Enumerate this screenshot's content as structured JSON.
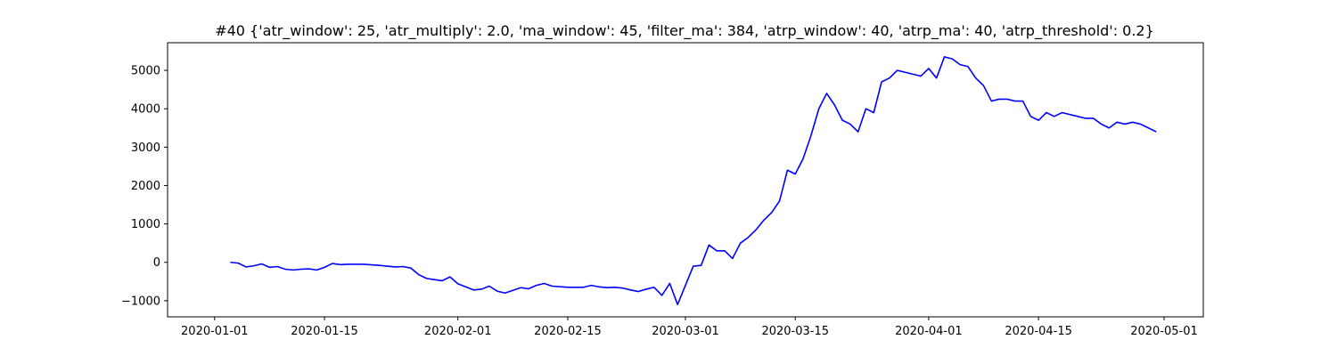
{
  "chart_data": {
    "type": "line",
    "title": "#40 {'atr_window': 25, 'atr_multiply': 2.0, 'ma_window': 45, 'filter_ma': 384, 'atrp_window': 40, 'atrp_ma': 40, 'atrp_threshold': 0.2}",
    "xlabel": "",
    "ylabel": "",
    "xlim": [
      "2019-12-26",
      "2020-05-06"
    ],
    "ylim": [
      -1420,
      5720
    ],
    "grid": false,
    "line_color": "#0000ff",
    "x_ticks": [
      "2020-01-01",
      "2020-01-15",
      "2020-02-01",
      "2020-02-15",
      "2020-03-01",
      "2020-03-15",
      "2020-04-01",
      "2020-04-15",
      "2020-05-01"
    ],
    "y_ticks": [
      -1000,
      0,
      1000,
      2000,
      3000,
      4000,
      5000
    ],
    "series": [
      {
        "x": [
          "2020-01-03",
          "2020-01-04",
          "2020-01-05",
          "2020-01-06",
          "2020-01-07",
          "2020-01-08",
          "2020-01-09",
          "2020-01-10",
          "2020-01-11",
          "2020-01-12",
          "2020-01-13",
          "2020-01-14",
          "2020-01-15",
          "2020-01-16",
          "2020-01-17",
          "2020-01-18",
          "2020-01-20",
          "2020-01-22",
          "2020-01-23",
          "2020-01-24",
          "2020-01-25",
          "2020-01-26",
          "2020-01-27",
          "2020-01-28",
          "2020-01-29",
          "2020-01-30",
          "2020-01-31",
          "2020-02-01",
          "2020-02-03",
          "2020-02-04",
          "2020-02-05",
          "2020-02-06",
          "2020-02-07",
          "2020-02-09",
          "2020-02-10",
          "2020-02-11",
          "2020-02-12",
          "2020-02-13",
          "2020-02-15",
          "2020-02-17",
          "2020-02-18",
          "2020-02-19",
          "2020-02-20",
          "2020-02-21",
          "2020-02-22",
          "2020-02-23",
          "2020-02-24",
          "2020-02-25",
          "2020-02-26",
          "2020-02-27",
          "2020-02-28",
          "2020-02-29",
          "2020-03-02",
          "2020-03-03",
          "2020-03-04",
          "2020-03-05",
          "2020-03-06",
          "2020-03-07",
          "2020-03-08",
          "2020-03-09",
          "2020-03-10",
          "2020-03-11",
          "2020-03-12",
          "2020-03-13",
          "2020-03-14",
          "2020-03-15",
          "2020-03-16",
          "2020-03-17",
          "2020-03-18",
          "2020-03-19",
          "2020-03-20",
          "2020-03-21",
          "2020-03-22",
          "2020-03-23",
          "2020-03-24",
          "2020-03-25",
          "2020-03-26",
          "2020-03-27",
          "2020-03-28",
          "2020-03-29",
          "2020-03-30",
          "2020-03-31",
          "2020-04-01",
          "2020-04-02",
          "2020-04-03",
          "2020-04-04",
          "2020-04-05",
          "2020-04-06",
          "2020-04-07",
          "2020-04-08",
          "2020-04-09",
          "2020-04-10",
          "2020-04-11",
          "2020-04-12",
          "2020-04-13",
          "2020-04-14",
          "2020-04-15",
          "2020-04-16",
          "2020-04-17",
          "2020-04-18",
          "2020-04-19",
          "2020-04-20",
          "2020-04-21",
          "2020-04-22",
          "2020-04-23",
          "2020-04-24",
          "2020-04-25",
          "2020-04-26",
          "2020-04-27",
          "2020-04-28",
          "2020-04-29",
          "2020-04-30"
        ],
        "values": [
          0,
          -20,
          -120,
          -90,
          -40,
          -130,
          -110,
          -180,
          -200,
          -180,
          -170,
          -200,
          -130,
          -30,
          -60,
          -50,
          -50,
          -80,
          -100,
          -120,
          -110,
          -150,
          -320,
          -420,
          -450,
          -480,
          -380,
          -560,
          -720,
          -700,
          -620,
          -750,
          -800,
          -660,
          -690,
          -600,
          -550,
          -620,
          -650,
          -650,
          -600,
          -640,
          -660,
          -650,
          -670,
          -720,
          -760,
          -700,
          -650,
          -860,
          -550,
          -1100,
          -100,
          -80,
          450,
          300,
          300,
          100,
          500,
          650,
          850,
          1100,
          1300,
          1600,
          2400,
          2300,
          2700,
          3300,
          4000,
          4400,
          4100,
          3700,
          3600,
          3400,
          4000,
          3900,
          4700,
          4800,
          5000,
          4950,
          4900,
          4850,
          5050,
          4800,
          5350,
          5300,
          5150,
          5100,
          4800,
          4600,
          4200,
          4250,
          4250,
          4200,
          4200,
          3800,
          3700,
          3900,
          3800,
          3900,
          3850,
          3800,
          3750,
          3750,
          3600,
          3500,
          3650,
          3600,
          3650,
          3600,
          3500,
          3400
        ]
      }
    ]
  }
}
